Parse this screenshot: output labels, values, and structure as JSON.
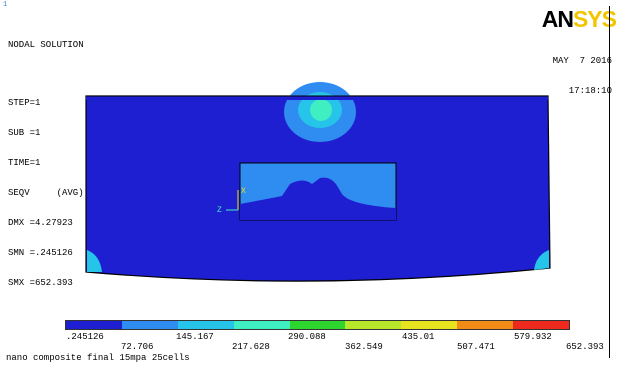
{
  "header": {
    "window_number": "1",
    "title": "NODAL SOLUTION",
    "lines": [
      "STEP=1",
      "SUB =1",
      "TIME=1",
      "SEQV     (AVG)",
      "DMX =4.27923",
      "SMN =.245126",
      "SMX =652.393"
    ],
    "date": "MAY  7 2016",
    "time": "17:18:10"
  },
  "logo": {
    "part1": "AN",
    "part2": "SYS"
  },
  "axis_triad": {
    "x_label": "X",
    "y_label": "Y",
    "z_label": "Z"
  },
  "legend": {
    "colors": [
      "#1f1fd2",
      "#2f8cf0",
      "#26c4e8",
      "#3fefc2",
      "#2fd52f",
      "#b8e62a",
      "#e8e21f",
      "#f28c17",
      "#ee2a1e"
    ],
    "upper_labels": [
      ".245126",
      "145.167",
      "290.088",
      "435.01",
      "579.932"
    ],
    "lower_labels": [
      "72.706",
      "217.628",
      "362.549",
      "507.471",
      "652.393"
    ]
  },
  "subtitle": "nano composite final 15mpa 25cells",
  "colors": {
    "plot_blue": "#1f1fd2",
    "light_blue": "#2f8cf0",
    "cyan": "#26c4e8",
    "aqua": "#3fefc2"
  }
}
